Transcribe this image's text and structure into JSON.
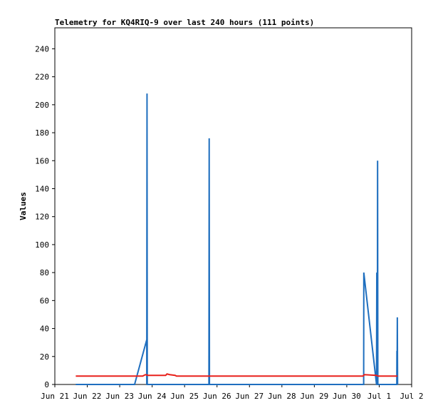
{
  "chart_data": {
    "type": "line",
    "title": "Telemetry for KQ4RIQ-9 over last 240 hours (111 points)",
    "ylabel": "Values",
    "xlabel": "",
    "ylim": [
      0,
      255
    ],
    "xlim": [
      0,
      264
    ],
    "y_ticks": [
      0,
      20,
      40,
      60,
      80,
      100,
      120,
      140,
      160,
      180,
      200,
      220,
      240
    ],
    "x_ticks": [
      {
        "label": "Jun 21",
        "x": 0
      },
      {
        "label": "Jun 22",
        "x": 24
      },
      {
        "label": "Jun 23",
        "x": 48
      },
      {
        "label": "Jun 24",
        "x": 72
      },
      {
        "label": "Jun 25",
        "x": 96
      },
      {
        "label": "Jun 26",
        "x": 120
      },
      {
        "label": "Jun 27",
        "x": 144
      },
      {
        "label": "Jun 28",
        "x": 168
      },
      {
        "label": "Jun 29",
        "x": 192
      },
      {
        "label": "Jun 30",
        "x": 216
      },
      {
        "label": "Jul 1",
        "x": 240
      },
      {
        "label": "Jul 2",
        "x": 264
      }
    ],
    "grid": false,
    "series": [
      {
        "color": "#1f6fbf",
        "points": [
          [
            15.5,
            0
          ],
          [
            59,
            0
          ],
          [
            68,
            32
          ],
          [
            68,
            0
          ],
          [
            68.2,
            208
          ],
          [
            68.4,
            0
          ],
          [
            114,
            0
          ],
          [
            114.2,
            176
          ],
          [
            114.4,
            0
          ],
          [
            228.5,
            0
          ],
          [
            228.6,
            80
          ],
          [
            238,
            0
          ],
          [
            238.2,
            80
          ],
          [
            238.4,
            0
          ],
          [
            238.6,
            0
          ],
          [
            238.8,
            160
          ],
          [
            239,
            0
          ],
          [
            253,
            0
          ],
          [
            253.1,
            24
          ],
          [
            253.2,
            0
          ],
          [
            253.4,
            48
          ],
          [
            253.6,
            0
          ]
        ]
      },
      {
        "color": "#e8211b",
        "points": [
          [
            15.5,
            6
          ],
          [
            65,
            6
          ],
          [
            66,
            6.5
          ],
          [
            67,
            7
          ],
          [
            69,
            6.5
          ],
          [
            82,
            6.5
          ],
          [
            83,
            7.5
          ],
          [
            85,
            7
          ],
          [
            89,
            6.5
          ],
          [
            90,
            6
          ],
          [
            228,
            6
          ],
          [
            229,
            7
          ],
          [
            238,
            6.5
          ],
          [
            239,
            6
          ],
          [
            253.5,
            6
          ]
        ]
      }
    ]
  }
}
